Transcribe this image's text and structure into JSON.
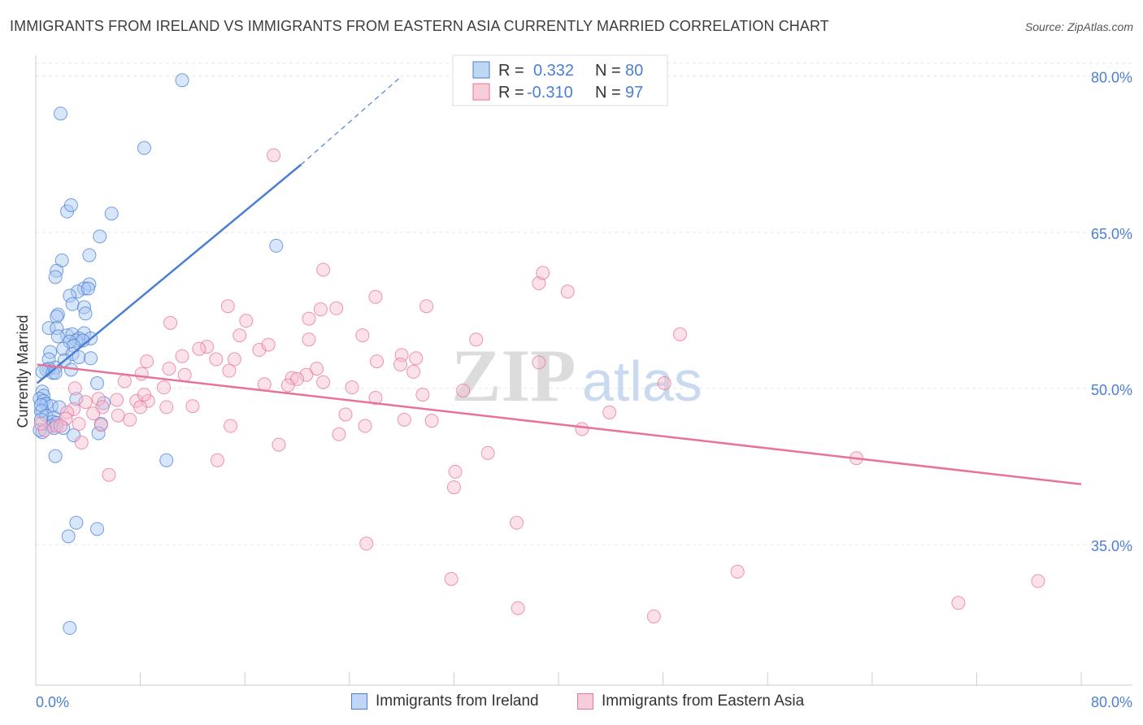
{
  "title": "IMMIGRANTS FROM IRELAND VS IMMIGRANTS FROM EASTERN ASIA CURRENTLY MARRIED CORRELATION CHART",
  "source": "Source: ZipAtlas.com",
  "watermark": "ZIPatlas",
  "colors": {
    "blue": "#4a7fd4",
    "blue_fill": "#a9c8f2",
    "pink": "#e8739a",
    "pink_fill": "#f6bccd",
    "grid": "#e6e6e6"
  },
  "legend": {
    "r_label": "R =",
    "n_label": "N =",
    "rows": [
      {
        "r": "0.332",
        "n": "80"
      },
      {
        "r": "-0.310",
        "n": "97"
      }
    ]
  },
  "chart_data": {
    "type": "scatter",
    "title": "IMMIGRANTS FROM IRELAND VS IMMIGRANTS FROM EASTERN ASIA CURRENTLY MARRIED CORRELATION CHART",
    "xlabel": "",
    "ylabel": "Currently Married",
    "xlim": [
      0,
      80
    ],
    "ylim": [
      21.5,
      82
    ],
    "x_tick_labels": [
      "0.0%",
      "80.0%"
    ],
    "y_ticks": [
      35,
      50,
      65,
      80
    ],
    "y_tick_labels": [
      "35.0%",
      "50.0%",
      "65.0%",
      "80.0%"
    ],
    "grid": true,
    "legend_position": "top-center",
    "series": [
      {
        "name": "Immigrants from Ireland",
        "color": "#4a7fd4",
        "r": 0.332,
        "n": 80,
        "trend": {
          "x0": 0.1,
          "y0": 50.5,
          "x1": 20.3,
          "y1": 71.5,
          "dash_x_end": 28.0,
          "dash_y_end": 80.0
        },
        "points": [
          [
            11.2,
            79.6
          ],
          [
            1.9,
            76.4
          ],
          [
            8.3,
            73.1
          ],
          [
            2.4,
            67.0
          ],
          [
            2.7,
            67.6
          ],
          [
            5.8,
            66.8
          ],
          [
            4.9,
            64.6
          ],
          [
            18.4,
            63.7
          ],
          [
            4.1,
            62.8
          ],
          [
            2.0,
            62.3
          ],
          [
            1.6,
            61.3
          ],
          [
            1.5,
            60.7
          ],
          [
            4.1,
            60.0
          ],
          [
            3.7,
            59.6
          ],
          [
            3.2,
            59.3
          ],
          [
            4.0,
            59.6
          ],
          [
            2.6,
            58.9
          ],
          [
            2.8,
            58.1
          ],
          [
            3.7,
            57.8
          ],
          [
            1.7,
            57.1
          ],
          [
            1.6,
            56.9
          ],
          [
            3.8,
            57.2
          ],
          [
            1.0,
            55.8
          ],
          [
            1.6,
            55.8
          ],
          [
            2.4,
            55.1
          ],
          [
            2.8,
            55.2
          ],
          [
            3.7,
            55.3
          ],
          [
            1.7,
            55.0
          ],
          [
            3.3,
            54.8
          ],
          [
            4.2,
            54.8
          ],
          [
            3.1,
            54.6
          ],
          [
            3.6,
            54.6
          ],
          [
            2.6,
            54.5
          ],
          [
            2.9,
            54.1
          ],
          [
            2.1,
            53.8
          ],
          [
            1.1,
            53.5
          ],
          [
            2.8,
            53.3
          ],
          [
            3.3,
            53.0
          ],
          [
            4.2,
            52.9
          ],
          [
            1.0,
            52.8
          ],
          [
            2.2,
            52.7
          ],
          [
            1.5,
            52.0
          ],
          [
            2.7,
            51.8
          ],
          [
            1.0,
            51.9
          ],
          [
            0.8,
            51.8
          ],
          [
            0.5,
            51.6
          ],
          [
            1.3,
            51.5
          ],
          [
            1.5,
            51.5
          ],
          [
            4.7,
            50.5
          ],
          [
            0.5,
            49.7
          ],
          [
            0.6,
            49.3
          ],
          [
            0.3,
            49.0
          ],
          [
            0.6,
            48.8
          ],
          [
            0.8,
            48.5
          ],
          [
            1.2,
            48.3
          ],
          [
            1.8,
            48.2
          ],
          [
            0.5,
            47.9
          ],
          [
            0.4,
            47.8
          ],
          [
            0.8,
            47.4
          ],
          [
            1.4,
            47.2
          ],
          [
            1.3,
            46.8
          ],
          [
            1.6,
            46.7
          ],
          [
            1.2,
            46.4
          ],
          [
            1.4,
            46.2
          ],
          [
            2.1,
            46.2
          ],
          [
            3.1,
            49.0
          ],
          [
            5.2,
            48.6
          ],
          [
            5.0,
            46.6
          ],
          [
            4.8,
            45.7
          ],
          [
            2.9,
            45.5
          ],
          [
            0.5,
            45.8
          ],
          [
            1.5,
            43.5
          ],
          [
            10.0,
            43.1
          ],
          [
            3.1,
            37.1
          ],
          [
            4.7,
            36.5
          ],
          [
            2.5,
            35.8
          ],
          [
            2.6,
            27.0
          ],
          [
            0.3,
            46.0
          ],
          [
            0.4,
            47.0
          ],
          [
            0.4,
            48.4
          ]
        ]
      },
      {
        "name": "Immigrants from Eastern Asia",
        "color": "#e8739a",
        "r": -0.31,
        "n": 97,
        "trend": {
          "x0": 0.1,
          "y0": 52.3,
          "x1": 80.0,
          "y1": 40.8
        },
        "points": [
          [
            18.2,
            72.4
          ],
          [
            22.0,
            61.4
          ],
          [
            38.5,
            60.1
          ],
          [
            38.8,
            61.1
          ],
          [
            40.7,
            59.3
          ],
          [
            26.0,
            58.8
          ],
          [
            14.7,
            57.9
          ],
          [
            21.8,
            57.6
          ],
          [
            23.0,
            57.7
          ],
          [
            29.9,
            57.9
          ],
          [
            20.9,
            56.7
          ],
          [
            10.3,
            56.3
          ],
          [
            16.1,
            56.5
          ],
          [
            25.0,
            55.1
          ],
          [
            15.6,
            55.1
          ],
          [
            20.9,
            54.7
          ],
          [
            33.7,
            54.7
          ],
          [
            49.3,
            55.2
          ],
          [
            13.1,
            54.0
          ],
          [
            12.5,
            53.8
          ],
          [
            17.1,
            53.7
          ],
          [
            17.8,
            54.2
          ],
          [
            11.2,
            53.1
          ],
          [
            13.8,
            52.8
          ],
          [
            15.2,
            52.8
          ],
          [
            8.5,
            52.6
          ],
          [
            28.0,
            53.2
          ],
          [
            29.1,
            52.9
          ],
          [
            26.1,
            52.6
          ],
          [
            38.5,
            52.5
          ],
          [
            27.9,
            52.3
          ],
          [
            21.5,
            51.9
          ],
          [
            10.2,
            51.9
          ],
          [
            14.8,
            51.7
          ],
          [
            28.9,
            51.6
          ],
          [
            11.4,
            51.3
          ],
          [
            20.7,
            51.3
          ],
          [
            19.6,
            51.0
          ],
          [
            20.0,
            50.9
          ],
          [
            22.0,
            50.6
          ],
          [
            17.5,
            50.4
          ],
          [
            19.3,
            50.3
          ],
          [
            6.8,
            50.7
          ],
          [
            9.8,
            50.1
          ],
          [
            3.0,
            50.0
          ],
          [
            24.2,
            50.1
          ],
          [
            32.7,
            49.8
          ],
          [
            29.6,
            49.4
          ],
          [
            26.0,
            49.1
          ],
          [
            48.1,
            50.5
          ],
          [
            4.8,
            49.0
          ],
          [
            6.2,
            48.9
          ],
          [
            7.7,
            48.8
          ],
          [
            8.6,
            48.8
          ],
          [
            3.8,
            48.7
          ],
          [
            8.0,
            48.2
          ],
          [
            10.0,
            48.2
          ],
          [
            12.0,
            48.3
          ],
          [
            5.1,
            48.2
          ],
          [
            43.9,
            47.7
          ],
          [
            2.9,
            48.0
          ],
          [
            2.4,
            47.7
          ],
          [
            4.4,
            47.6
          ],
          [
            23.7,
            47.5
          ],
          [
            6.3,
            47.4
          ],
          [
            7.2,
            47.0
          ],
          [
            2.3,
            47.1
          ],
          [
            28.2,
            47.0
          ],
          [
            30.3,
            46.9
          ],
          [
            25.2,
            46.4
          ],
          [
            14.9,
            46.4
          ],
          [
            5.0,
            46.5
          ],
          [
            3.3,
            46.6
          ],
          [
            41.8,
            46.1
          ],
          [
            1.6,
            46.4
          ],
          [
            1.9,
            46.4
          ],
          [
            0.7,
            46.0
          ],
          [
            0.4,
            46.6
          ],
          [
            23.2,
            45.6
          ],
          [
            18.6,
            44.6
          ],
          [
            3.5,
            44.8
          ],
          [
            34.6,
            43.8
          ],
          [
            13.9,
            43.1
          ],
          [
            62.8,
            43.3
          ],
          [
            32.1,
            42.0
          ],
          [
            5.6,
            41.7
          ],
          [
            32.0,
            40.5
          ],
          [
            36.8,
            37.1
          ],
          [
            25.3,
            35.1
          ],
          [
            31.8,
            31.7
          ],
          [
            53.7,
            32.4
          ],
          [
            76.7,
            31.5
          ],
          [
            36.9,
            28.9
          ],
          [
            47.3,
            28.1
          ],
          [
            70.6,
            29.4
          ],
          [
            8.1,
            51.4
          ],
          [
            8.3,
            49.4
          ]
        ]
      }
    ]
  },
  "bottom_legend": [
    {
      "label": "Immigrants from Ireland"
    },
    {
      "label": "Immigrants from Eastern Asia"
    }
  ]
}
